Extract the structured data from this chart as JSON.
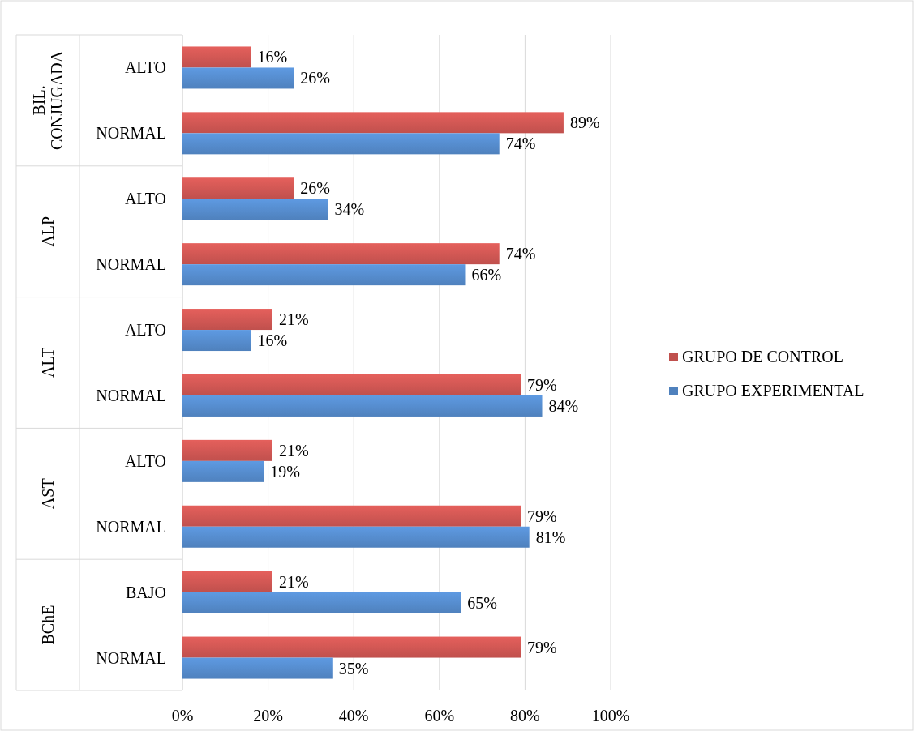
{
  "chart_data": {
    "type": "bar",
    "orientation": "horizontal",
    "categories": [
      "ALTO",
      "NORMAL",
      "ALTO",
      "NORMAL",
      "ALTO",
      "NORMAL",
      "ALTO",
      "NORMAL",
      "BAJO",
      "NORMAL"
    ],
    "annotations": [
      "BIL. CONJUGADA",
      "ALP",
      "ALT",
      "AST",
      "BChE"
    ],
    "series": [
      {
        "name": "GRUPO DE CONTROL",
        "color": "#c0504d",
        "values": [
          16,
          89,
          26,
          74,
          21,
          79,
          21,
          79,
          21,
          79
        ],
        "value_labels": [
          "16%",
          "89%",
          "26%",
          "74%",
          "21%",
          "79%",
          "21%",
          "79%",
          "21%",
          "79%"
        ]
      },
      {
        "name": "GRUPO EXPERIMENTAL",
        "color": "#4f81bd",
        "values": [
          26,
          74,
          34,
          66,
          16,
          84,
          19,
          81,
          65,
          35
        ],
        "value_labels": [
          "26%",
          "74%",
          "34%",
          "66%",
          "16%",
          "84%",
          "19%",
          "81%",
          "65%",
          "35%"
        ]
      }
    ],
    "xlim": [
      0,
      100
    ],
    "xticks": [
      {
        "value": 0,
        "label": "0%"
      },
      {
        "value": 20,
        "label": "20%"
      },
      {
        "value": 40,
        "label": "40%"
      },
      {
        "value": 60,
        "label": "60%"
      },
      {
        "value": 80,
        "label": "80%"
      },
      {
        "value": 100,
        "label": "100%"
      }
    ],
    "grid": "x",
    "legend": "right"
  }
}
